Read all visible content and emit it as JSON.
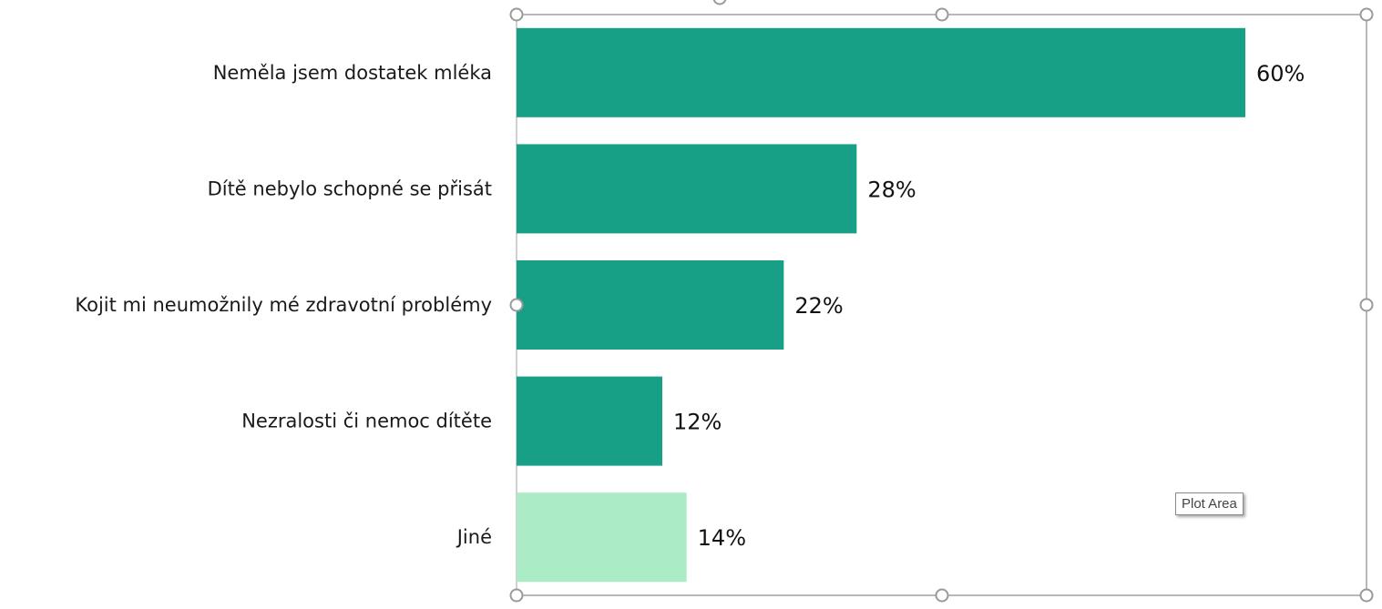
{
  "chart_data": {
    "type": "bar",
    "orientation": "horizontal",
    "categories": [
      "Neměla jsem dostatek mléka",
      "Dítě nebylo schopné se přisát",
      "Kojit mi neumožnily mé zdravotní problémy",
      "Nezralosti či nemoc dítěte",
      "Jiné"
    ],
    "values": [
      60,
      28,
      22,
      12,
      14
    ],
    "value_labels": [
      "60%",
      "28%",
      "22%",
      "12%",
      "14%"
    ],
    "xlim": [
      0,
      70
    ],
    "colors": [
      "#17a085",
      "#17a085",
      "#17a085",
      "#17a085",
      "#abebc6"
    ],
    "grid": false,
    "legend": "none",
    "title": "",
    "xlabel": "",
    "ylabel": ""
  },
  "ui": {
    "tooltip": "Plot Area",
    "selection_border_color": "#a0a0a0"
  }
}
